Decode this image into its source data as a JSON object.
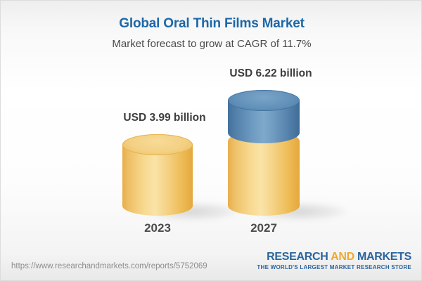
{
  "header": {
    "title": "Global Oral Thin Films Market",
    "subtitle": "Market forecast to grow at CAGR of 11.7%"
  },
  "chart_data": {
    "type": "bar",
    "variant": "3d-cylinder",
    "title": "Global Oral Thin Films Market",
    "subtitle": "Market forecast to grow at CAGR of 11.7%",
    "categories": [
      "2023",
      "2027"
    ],
    "values": [
      3.99,
      6.22
    ],
    "unit": "USD billion",
    "data_labels": [
      "USD 3.99 billion",
      "USD 6.22 billion"
    ],
    "cagr_percent": 11.7,
    "grid": false,
    "legend_position": "none",
    "axis_labels": {
      "x": "",
      "y": ""
    },
    "colors": {
      "cylinder_gold": "#f0c468",
      "cylinder_gold_dark": "#e6a83e",
      "growth_segment_blue": "#5d8cb5",
      "growth_segment_blue_dark": "#40719f"
    }
  },
  "bars": [
    {
      "year": "2023",
      "value_label": "USD 3.99 billion"
    },
    {
      "year": "2027",
      "value_label": "USD 6.22 billion"
    }
  ],
  "footer": {
    "url": "https://www.researchandmarkets.com/reports/5752069",
    "logo_research": "RESEARCH",
    "logo_and": "AND",
    "logo_markets": "MARKETS",
    "logo_tagline": "THE WORLD'S LARGEST MARKET RESEARCH STORE"
  },
  "colors": {
    "title_blue": "#1e68a7",
    "subtitle_gray": "#4a4a4a",
    "url_gray": "#8d8d8d",
    "logo_blue": "#2a649d",
    "logo_gold": "#f0a92e"
  }
}
